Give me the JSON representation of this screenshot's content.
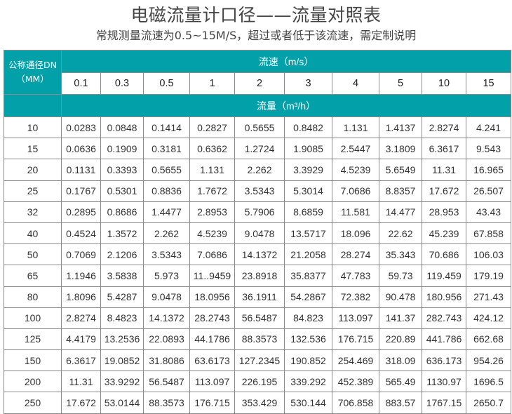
{
  "title": "电磁流量计口径——流量对照表",
  "subtitle": "常规测量流速为0.5~15M/S，超过或者低于该流速，需定制说明",
  "table": {
    "dn_header_line1": "公称通径DN",
    "dn_header_line2": "（MM）",
    "velocity_header": "流速（m/s）",
    "flow_header": "流量（m³/h）",
    "velocities": [
      "0.1",
      "0.3",
      "0.5",
      "1",
      "2",
      "3",
      "4",
      "5",
      "10",
      "15"
    ],
    "rows": [
      {
        "dn": "10",
        "values": [
          "0.0283",
          "0.0848",
          "0.1414",
          "0.2827",
          "0.5655",
          "0.8482",
          "1.131",
          "1.4137",
          "2.8274",
          "4.241"
        ]
      },
      {
        "dn": "15",
        "values": [
          "0.0636",
          "0.1909",
          "0.3181",
          "0.6362",
          "1.2724",
          "1.9085",
          "2.5447",
          "3.1809",
          "6.3617",
          "9.543"
        ]
      },
      {
        "dn": "20",
        "values": [
          "0.1131",
          "0.3393",
          "0.5655",
          "1.131",
          "2.262",
          "3.3929",
          "4.5239",
          "5.6549",
          "11.31",
          "16.965"
        ]
      },
      {
        "dn": "25",
        "values": [
          "0.1767",
          "0.5301",
          "0.8836",
          "1.7672",
          "3.5343",
          "5.3014",
          "7.0686",
          "8.8357",
          "17.672",
          "26.507"
        ]
      },
      {
        "dn": "32",
        "values": [
          "0.2895",
          "0.8686",
          "1.4477",
          "2.8953",
          "5.7906",
          "8.6859",
          "11.581",
          "14.477",
          "28.953",
          "43.43"
        ]
      },
      {
        "dn": "40",
        "values": [
          "0.4524",
          "1.3572",
          "2.262",
          "4.5239",
          "9.0478",
          "13.5717",
          "18.096",
          "22.62",
          "45.239",
          "67.858"
        ]
      },
      {
        "dn": "50",
        "values": [
          "0.7069",
          "2.1206",
          "3.5343",
          "7.0686",
          "14.1372",
          "21.2058",
          "28.274",
          "35.343",
          "70.686",
          "106.03"
        ]
      },
      {
        "dn": "65",
        "values": [
          "1.1946",
          "3.5838",
          "5.973",
          "11..9459",
          "23.8918",
          "35.8377",
          "47.783",
          "59.73",
          "119.459",
          "179.19"
        ]
      },
      {
        "dn": "80",
        "values": [
          "1.8096",
          "5.4287",
          "9.0478",
          "18.0956",
          "36.1911",
          "54.2867",
          "72.382",
          "90.478",
          "180.956",
          "271.43"
        ]
      },
      {
        "dn": "100",
        "values": [
          "2.8274",
          "8.4823",
          "14.1372",
          "28.2743",
          "56.5487",
          "84.823",
          "113.097",
          "141.37",
          "282.743",
          "424.12"
        ]
      },
      {
        "dn": "125",
        "values": [
          "4.4179",
          "13.2536",
          "22.0893",
          "44.1786",
          "88.3573",
          "132.536",
          "176.715",
          "220.89",
          "441.786",
          "662.68"
        ]
      },
      {
        "dn": "150",
        "values": [
          "6.3617",
          "19.0852",
          "31.8086",
          "63.6173",
          "127.2345",
          "190.852",
          "254.469",
          "318.09",
          "636.173",
          "954.26"
        ]
      },
      {
        "dn": "200",
        "values": [
          "11.31",
          "33.9292",
          "56.5487",
          "113.097",
          "226.195",
          "339.292",
          "452.389",
          "565.49",
          "1130.97",
          "1696.5"
        ]
      },
      {
        "dn": "250",
        "values": [
          "17.672",
          "53.0144",
          "88.3573",
          "176.715",
          "353.429",
          "530.144",
          "706.858",
          "883.57",
          "1767.15",
          "2650.7"
        ]
      }
    ]
  },
  "colors": {
    "header_bg": "#02a1aa"
  }
}
